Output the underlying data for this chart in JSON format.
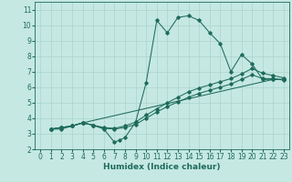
{
  "xlabel": "Humidex (Indice chaleur)",
  "xlim": [
    -0.5,
    23.5
  ],
  "ylim": [
    2,
    11.5
  ],
  "xticks": [
    0,
    1,
    2,
    3,
    4,
    5,
    6,
    7,
    8,
    9,
    10,
    11,
    12,
    13,
    14,
    15,
    16,
    17,
    18,
    19,
    20,
    21,
    22,
    23
  ],
  "yticks": [
    2,
    3,
    4,
    5,
    6,
    7,
    8,
    9,
    10,
    11
  ],
  "bg_color": "#c5e8e2",
  "grid_color": "#aad4cc",
  "line_color": "#1e6b5c",
  "lines": [
    {
      "x": [
        1,
        2,
        3,
        4,
        5,
        6,
        7,
        7.5,
        8,
        9,
        10,
        11,
        12,
        13,
        14,
        15,
        16,
        17,
        18,
        19,
        20,
        21,
        22,
        23
      ],
      "y": [
        3.3,
        3.3,
        3.5,
        3.7,
        3.55,
        3.3,
        2.45,
        2.6,
        2.75,
        3.75,
        6.3,
        10.3,
        9.5,
        10.5,
        10.6,
        10.3,
        9.5,
        8.8,
        7.0,
        8.1,
        7.5,
        6.5,
        6.5,
        6.5
      ]
    },
    {
      "x": [
        1,
        2,
        3,
        4,
        5,
        6,
        7,
        8,
        9,
        10,
        11,
        12,
        13,
        14,
        15,
        16,
        17,
        18,
        19,
        20,
        21,
        22,
        23
      ],
      "y": [
        3.3,
        3.4,
        3.5,
        3.7,
        3.55,
        3.35,
        3.3,
        3.4,
        3.6,
        4.0,
        4.4,
        4.75,
        5.05,
        5.35,
        5.6,
        5.8,
        6.0,
        6.2,
        6.5,
        6.8,
        6.55,
        6.55,
        6.45
      ]
    },
    {
      "x": [
        1,
        2,
        3,
        4,
        5,
        6,
        7,
        8,
        9,
        10,
        11,
        12,
        13,
        14,
        15,
        16,
        17,
        18,
        19,
        20,
        21,
        22,
        23
      ],
      "y": [
        3.3,
        3.4,
        3.5,
        3.7,
        3.55,
        3.4,
        3.35,
        3.5,
        3.75,
        4.2,
        4.6,
        5.0,
        5.35,
        5.7,
        5.95,
        6.15,
        6.35,
        6.55,
        6.85,
        7.2,
        6.9,
        6.75,
        6.6
      ]
    },
    {
      "x": [
        1,
        2,
        3,
        4,
        22,
        23
      ],
      "y": [
        3.3,
        3.4,
        3.5,
        3.7,
        6.5,
        6.5
      ]
    }
  ],
  "marker": "D",
  "markersize": 1.8,
  "linewidth": 0.75,
  "tick_fontsize": 5.5,
  "xlabel_fontsize": 6.5
}
